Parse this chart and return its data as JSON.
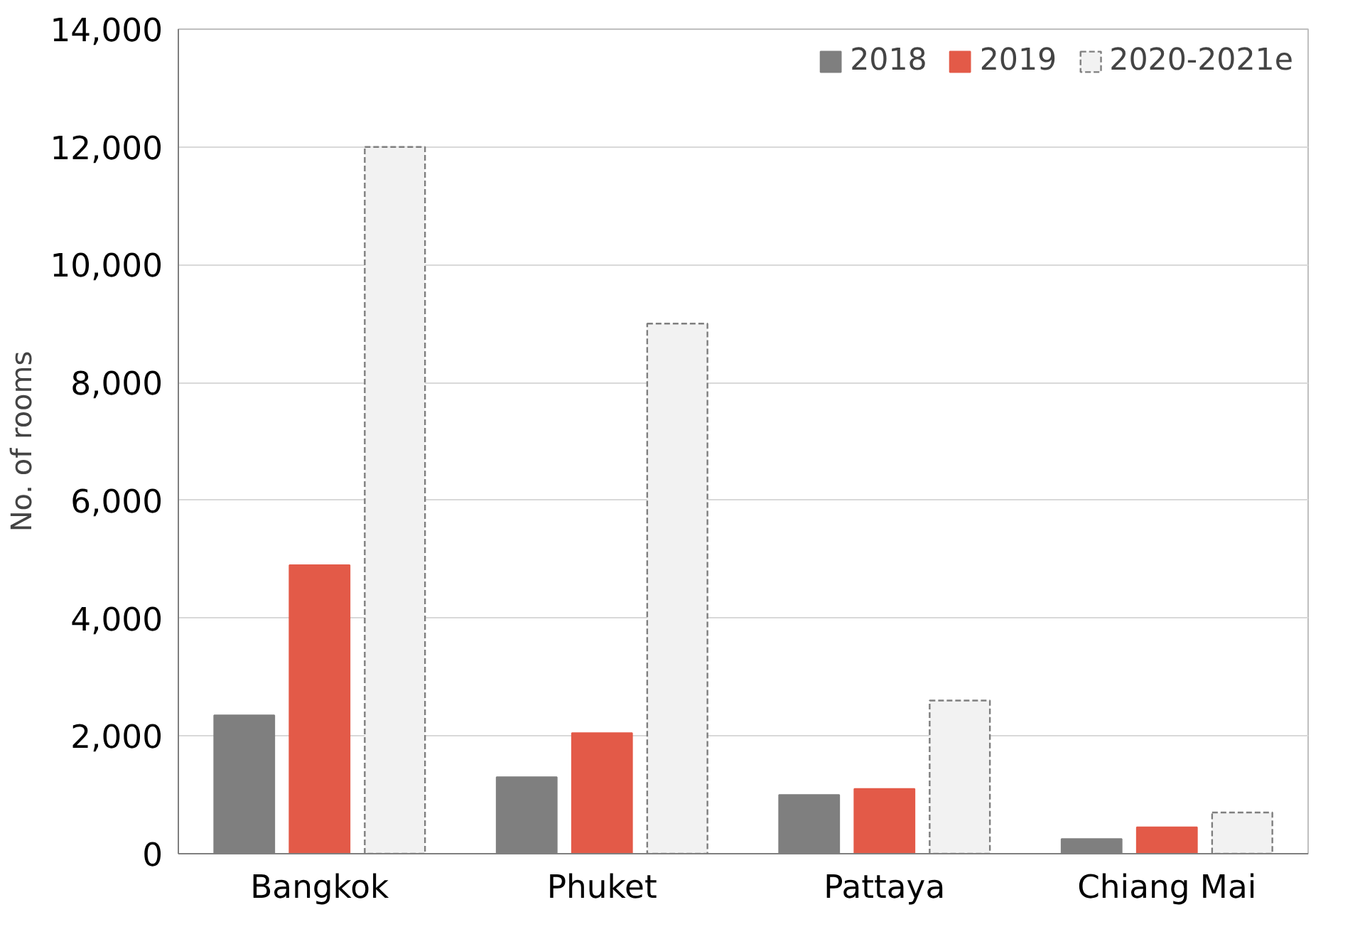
{
  "chart_data": {
    "type": "bar",
    "ylabel": "No. of rooms",
    "categories": [
      "Bangkok",
      "Phuket",
      "Pattaya",
      "Chiang Mai"
    ],
    "series": [
      {
        "name": "2018",
        "color": "#7f7f7f",
        "values": [
          2350,
          1300,
          1000,
          250
        ]
      },
      {
        "name": "2019",
        "color": "#e35a48",
        "values": [
          4900,
          2050,
          1100,
          450
        ]
      },
      {
        "name": "2020-2021e",
        "color": "#f2f2f2",
        "line_style": "dashed",
        "values": [
          12000,
          9000,
          2600,
          700
        ]
      }
    ],
    "ylim": [
      0,
      14000
    ],
    "yticks": [
      {
        "value": 0,
        "label": "0"
      },
      {
        "value": 2000,
        "label": "2,000"
      },
      {
        "value": 4000,
        "label": "4,000"
      },
      {
        "value": 6000,
        "label": "6,000"
      },
      {
        "value": 8000,
        "label": "8,000"
      },
      {
        "value": 10000,
        "label": "10,000"
      },
      {
        "value": 12000,
        "label": "12,000"
      },
      {
        "value": 14000,
        "label": "14,000"
      }
    ],
    "grid": "y",
    "legend": "top right"
  }
}
